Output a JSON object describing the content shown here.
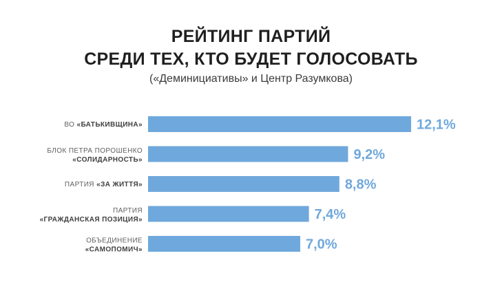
{
  "colors": {
    "bar": "#6fa8dc",
    "value_label": "#6fa8dc",
    "title": "#1f1f1f"
  },
  "chart_data": {
    "type": "bar",
    "orientation": "horizontal",
    "title_line1": "РЕЙТИНГ ПАРТИЙ",
    "title_line2": "СРЕДИ ТЕХ, КТО БУДЕТ ГОЛОСОВАТЬ",
    "subtitle": "(«Деминициативы» и Центр Разумкова)",
    "categories": [
      {
        "parts": [
          {
            "text": "ВО ",
            "bold": false
          },
          {
            "text": "«БАТЬКИВЩИНА»",
            "bold": true
          }
        ]
      },
      {
        "line1": "БЛОК ПЕТРА ПОРОШЕНКО",
        "line2": "«СОЛИДАРНОСТЬ»"
      },
      {
        "parts": [
          {
            "text": "ПАРТИЯ ",
            "bold": false
          },
          {
            "text": "«ЗА ЖИТТЯ»",
            "bold": true
          }
        ]
      },
      {
        "line1": "ПАРТИЯ",
        "line2": "«ГРАЖДАНСКАЯ ПОЗИЦИЯ»"
      },
      {
        "line1": "ОБЪЕДИНЕНИЕ",
        "line2": "«САМОПОМИЧ»"
      }
    ],
    "values": [
      12.1,
      9.2,
      8.8,
      7.4,
      7.0
    ],
    "value_labels": [
      "12,1%",
      "9,2%",
      "8,8%",
      "7,4%",
      "7,0%"
    ],
    "xlim": [
      0,
      12.1
    ],
    "grid": false,
    "legend": "none"
  }
}
